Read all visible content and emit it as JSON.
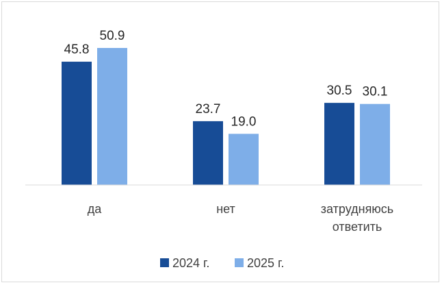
{
  "chart_data": {
    "type": "bar",
    "categories": [
      [
        "да"
      ],
      [
        "нет"
      ],
      [
        "затрудняюсь",
        "ответить"
      ]
    ],
    "series": [
      {
        "name": "2024 г.",
        "values": [
          45.8,
          23.7,
          30.5
        ],
        "color": "#174c96"
      },
      {
        "name": "2025 г.",
        "values": [
          50.9,
          19.0,
          30.1
        ],
        "color": "#7eaee8"
      }
    ],
    "value_labels": [
      [
        "45.8",
        "23.7",
        "30.5"
      ],
      [
        "50.9",
        "19.0",
        "30.1"
      ]
    ],
    "ylim": [
      0,
      60
    ],
    "grid": false,
    "legend_position": "bottom",
    "title": "",
    "xlabel": "",
    "ylabel": ""
  }
}
